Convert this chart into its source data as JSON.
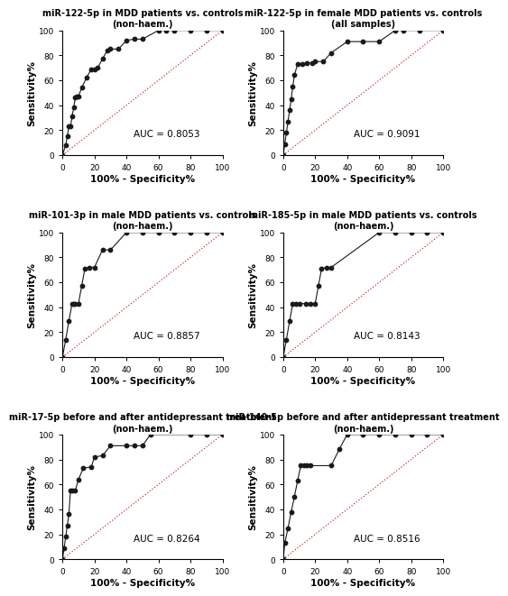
{
  "plots": [
    {
      "title": "miR-122-5p in MDD patients vs. controls",
      "subtitle": "(non-haem.)",
      "auc": "AUC = 0.8053",
      "x": [
        0,
        2,
        3,
        4,
        5,
        6,
        7,
        8,
        9,
        10,
        12,
        15,
        18,
        20,
        22,
        25,
        28,
        30,
        35,
        40,
        45,
        50,
        60,
        65,
        70,
        80,
        90,
        100
      ],
      "y": [
        0,
        8,
        15,
        23,
        23,
        31,
        38,
        46,
        47,
        47,
        54,
        62,
        69,
        69,
        70,
        77,
        84,
        85,
        85,
        92,
        93,
        93,
        100,
        100,
        100,
        100,
        100,
        100
      ]
    },
    {
      "title": "miR-122-5p in female MDD patients vs. controls",
      "subtitle": "(all samples)",
      "auc": "AUC = 0.9091",
      "x": [
        0,
        1,
        2,
        3,
        4,
        5,
        6,
        7,
        9,
        12,
        15,
        18,
        20,
        25,
        30,
        40,
        50,
        60,
        70,
        75,
        85,
        100
      ],
      "y": [
        0,
        9,
        18,
        27,
        36,
        45,
        55,
        64,
        73,
        73,
        74,
        74,
        75,
        75,
        82,
        91,
        91,
        91,
        100,
        100,
        100,
        100
      ]
    },
    {
      "title": "miR-101-3p in male MDD patients vs. controls",
      "subtitle": "(non-haem.)",
      "auc": "AUC = 0.8857",
      "x": [
        0,
        2,
        4,
        6,
        7,
        8,
        10,
        12,
        14,
        17,
        20,
        25,
        30,
        40,
        50,
        60,
        70,
        80,
        90,
        100
      ],
      "y": [
        0,
        14,
        29,
        43,
        43,
        43,
        43,
        57,
        71,
        72,
        72,
        86,
        86,
        100,
        100,
        100,
        100,
        100,
        100,
        100
      ]
    },
    {
      "title": "miR-185-5p in male MDD patients vs. controls",
      "subtitle": "(non-haem.)",
      "auc": "AUC = 0.8143",
      "x": [
        0,
        2,
        4,
        6,
        8,
        10,
        14,
        17,
        20,
        22,
        24,
        27,
        30,
        60,
        70,
        80,
        90,
        100
      ],
      "y": [
        0,
        14,
        29,
        43,
        43,
        43,
        43,
        43,
        43,
        57,
        71,
        72,
        72,
        100,
        100,
        100,
        100,
        100
      ]
    },
    {
      "title": "miR-17-5p before and after antidepressant treatment",
      "subtitle": "(non-haem.)",
      "auc": "AUC = 0.8264",
      "x": [
        0,
        1,
        2,
        3,
        4,
        5,
        6,
        8,
        10,
        13,
        18,
        20,
        25,
        30,
        40,
        45,
        50,
        55,
        80,
        90,
        100
      ],
      "y": [
        0,
        9,
        18,
        27,
        36,
        55,
        55,
        55,
        64,
        73,
        74,
        82,
        83,
        91,
        91,
        91,
        91,
        100,
        100,
        100,
        100
      ]
    },
    {
      "title": "miR-140-5p before and after antidepressant treatment",
      "subtitle": "(non-haem.)",
      "auc": "AUC = 0.8516",
      "x": [
        0,
        1,
        3,
        5,
        7,
        9,
        11,
        13,
        15,
        17,
        30,
        35,
        40,
        50,
        60,
        70,
        80,
        90,
        100
      ],
      "y": [
        0,
        13,
        25,
        38,
        50,
        63,
        75,
        75,
        75,
        75,
        75,
        88,
        100,
        100,
        100,
        100,
        100,
        100,
        100
      ]
    }
  ],
  "dot_color": "#1a1a1a",
  "line_color": "#1a1a1a",
  "diag_color": "#cc3333",
  "bg_color": "#ffffff",
  "title_fontsize": 7.0,
  "subtitle_fontsize": 6.5,
  "axis_label_fontsize": 7.5,
  "tick_fontsize": 6.5,
  "auc_fontsize": 7.5
}
